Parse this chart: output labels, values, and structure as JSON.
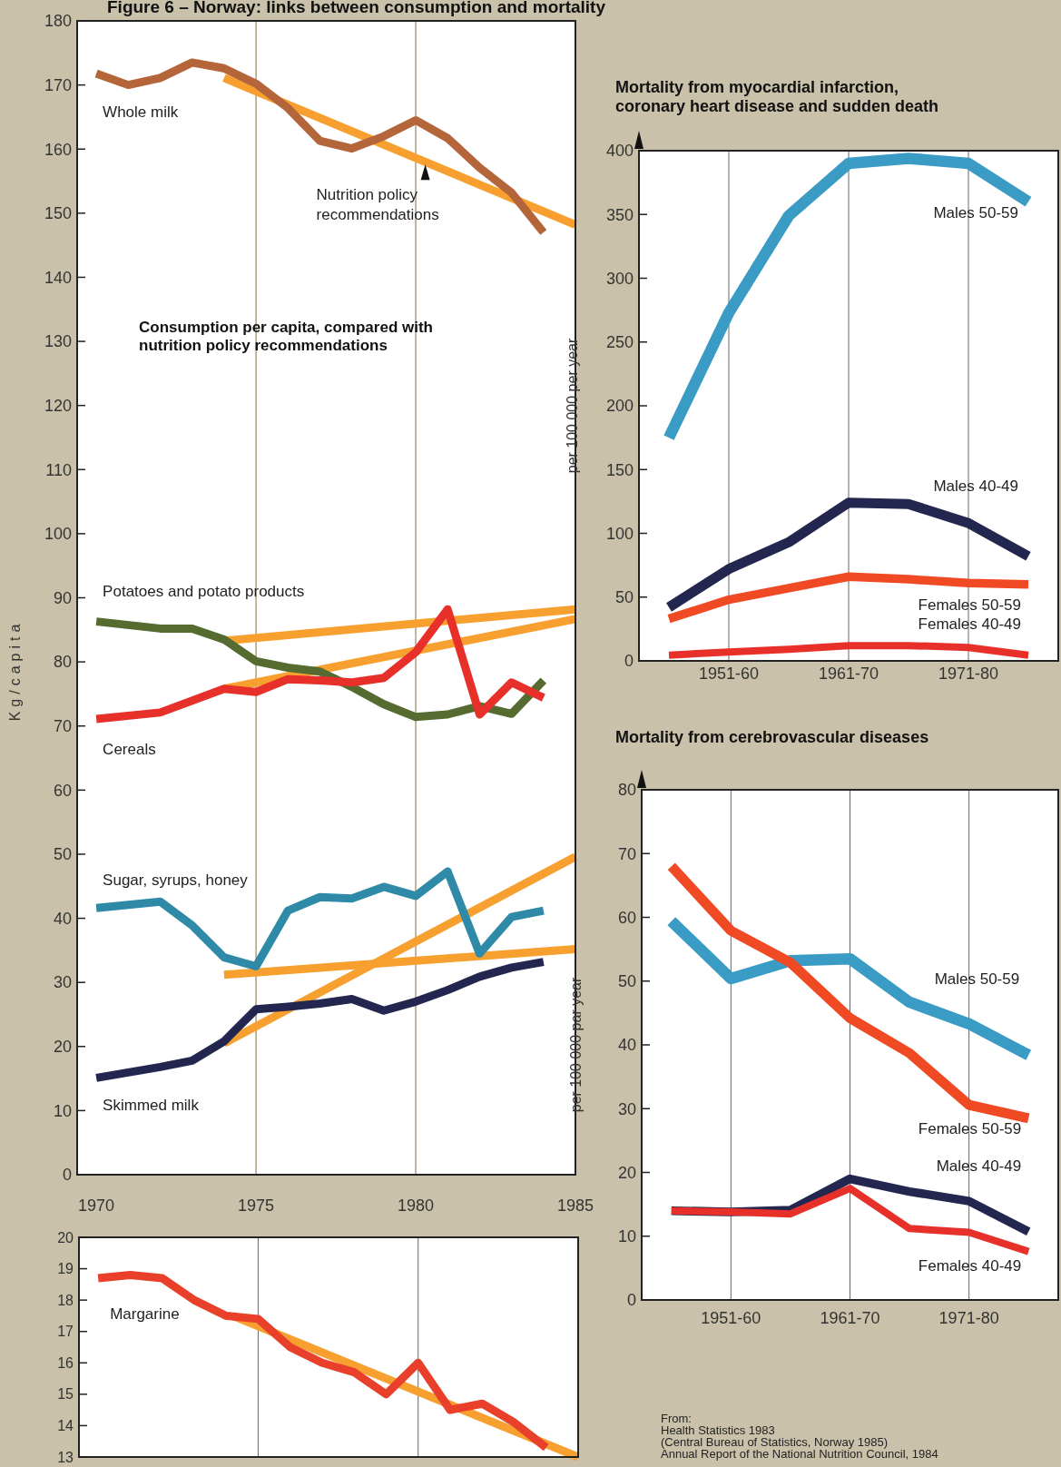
{
  "chart_data": [
    {
      "type": "line",
      "title": "Figure 6 – Norway: links between consumption and mortality",
      "ylabel": "Kg/capita",
      "xlim": [
        1969.4,
        1985
      ],
      "xticks": [
        1970,
        1975,
        1980,
        1985
      ],
      "ylim": [
        0,
        180
      ],
      "yticks": [
        0,
        10,
        20,
        30,
        40,
        50,
        60,
        70,
        80,
        90,
        100,
        110,
        120,
        130,
        140,
        150,
        160,
        170,
        180
      ],
      "ref_lines": [
        {
          "axis": "x",
          "value": 1975,
          "color": "#8a6a40"
        },
        {
          "axis": "x",
          "value": 1980,
          "color": "#8a6a40"
        }
      ],
      "annotations": [
        "Consumption per capita, compared with nutrition policy recommendations",
        {
          "text": "Nutrition policy recommendations",
          "x": 1980.3,
          "y": 158
        }
      ],
      "series": [
        {
          "color": "#f7a030",
          "x": [
            1974,
            1985
          ],
          "values": [
            171.1,
            148.2
          ]
        },
        {
          "color": "#f7a030",
          "x": [
            1974,
            1985
          ],
          "values": [
            83.3,
            88.2
          ]
        },
        {
          "color": "#f7a030",
          "x": [
            1974,
            1985
          ],
          "values": [
            75.8,
            86.7
          ]
        },
        {
          "color": "#f7a030",
          "x": [
            1974,
            1985
          ],
          "values": [
            31.2,
            35.2
          ]
        },
        {
          "color": "#f7a030",
          "x": [
            1974,
            1985
          ],
          "values": [
            20.5,
            49.6
          ]
        },
        {
          "name": "Whole milk",
          "color": "#b5653a",
          "x": [
            1970,
            1971,
            1972,
            1973,
            1974,
            1975,
            1976,
            1977,
            1978,
            1979,
            1980,
            1981,
            1982,
            1983,
            1984
          ],
          "values": [
            171.8,
            170,
            171.1,
            173.5,
            172.6,
            170.2,
            166.4,
            161.3,
            160.1,
            162,
            164.5,
            161.7,
            157.1,
            153.2,
            147
          ]
        },
        {
          "name": "Potatoes and potato products",
          "color": "#556b2f",
          "x": [
            1970,
            1972,
            1973,
            1974,
            1975,
            1976,
            1977,
            1978,
            1979,
            1980,
            1981,
            1982,
            1983,
            1984
          ],
          "values": [
            86.3,
            85.2,
            85.2,
            83.5,
            80.1,
            79.1,
            78.5,
            76.1,
            73.4,
            71.4,
            71.8,
            73.1,
            71.9,
            77.1
          ]
        },
        {
          "name": "Cereals",
          "color": "#e8302a",
          "x": [
            1970,
            1972,
            1974,
            1975,
            1976,
            1977,
            1978,
            1979,
            1980,
            1981,
            1982,
            1983,
            1984
          ],
          "values": [
            71.1,
            72.1,
            75.8,
            75.3,
            77.3,
            77.1,
            76.8,
            77.5,
            81.5,
            88.2,
            71.8,
            76.8,
            74.4
          ]
        },
        {
          "name": "Sugar, syrups, honey",
          "color": "#2f8aa8",
          "x": [
            1970,
            1972,
            1973,
            1974,
            1975,
            1976,
            1977,
            1978,
            1979,
            1980,
            1981,
            1982,
            1983,
            1984
          ],
          "values": [
            41.6,
            42.6,
            38.9,
            33.9,
            32.5,
            41.2,
            43.3,
            43.1,
            44.9,
            43.5,
            47.3,
            34.5,
            40.2,
            41.2
          ]
        },
        {
          "name": "Skimmed milk",
          "color": "#23264f",
          "x": [
            1970,
            1972,
            1973,
            1974,
            1975,
            1976,
            1977,
            1978,
            1979,
            1980,
            1981,
            1982,
            1983,
            1984
          ],
          "values": [
            15.1,
            16.8,
            17.8,
            20.8,
            25.8,
            26.2,
            26.7,
            27.4,
            25.6,
            27,
            28.8,
            30.9,
            32.3,
            33.2
          ]
        }
      ]
    },
    {
      "type": "line",
      "xlim": [
        1969.4,
        1985
      ],
      "xticks": [
        {
          "value": 1975,
          "label": null
        },
        {
          "value": 1980,
          "label": null
        }
      ],
      "ylim": [
        13,
        20
      ],
      "yticks": [
        13,
        14,
        15,
        16,
        17,
        18,
        19,
        20
      ],
      "tick_labels": "y",
      "grid": "x",
      "series": [
        {
          "color": "#f7a030",
          "x": [
            1974.2,
            1985
          ],
          "values": [
            17.5,
            13
          ]
        },
        {
          "name": "Margarine",
          "color": "#e8402a",
          "x": [
            1970,
            1971,
            1972,
            1973,
            1974,
            1975,
            1976,
            1977,
            1978,
            1979,
            1980,
            1981,
            1982,
            1983,
            1984
          ],
          "values": [
            18.7,
            18.8,
            18.7,
            18,
            17.5,
            17.4,
            16.5,
            16,
            15.7,
            15,
            16,
            14.5,
            14.7,
            14.1,
            13.3
          ]
        }
      ]
    },
    {
      "type": "line",
      "title": "Mortality from myocardial infarction, coronary heart disease and sudden death",
      "ylabel": "per 100 000  per year",
      "categories": [
        null,
        "1951-60",
        null,
        "1961-70",
        null,
        "1971-80",
        null
      ],
      "ylim": [
        0,
        400
      ],
      "yticks": [
        0,
        50,
        100,
        150,
        200,
        250,
        300,
        350,
        400
      ],
      "grid": "x",
      "series": [
        {
          "name": "Males 50-59",
          "color": "#3a9cc4",
          "values": [
            175,
            273,
            349,
            390,
            394,
            390,
            360
          ]
        },
        {
          "name": "Males 40-49",
          "color": "#23264f",
          "values": [
            42,
            72,
            93,
            124,
            123,
            108,
            82
          ]
        },
        {
          "name": "Females 50-59",
          "color": "#f04a25",
          "values": [
            33,
            48,
            57,
            66,
            64,
            61,
            60
          ]
        },
        {
          "name": "Females 40-49",
          "color": "#e8302a",
          "values": [
            4.5,
            7,
            9,
            12,
            12,
            10.5,
            4.5
          ]
        }
      ]
    },
    {
      "type": "line",
      "title": "Mortality from cerebrovascular diseases",
      "ylabel": "per 100 000 par year",
      "categories": [
        null,
        "1951-60",
        null,
        "1961-70",
        null,
        "1971-80",
        null
      ],
      "ylim": [
        0,
        80
      ],
      "yticks": [
        0,
        10,
        20,
        30,
        40,
        50,
        60,
        70,
        80
      ],
      "grid": "x",
      "annotations": [
        "From:\nHealth Statistics 1983\n(Central Bureau of Statistics, Norway 1985)\nAnnual Report of the National Nutrition Council, 1984"
      ],
      "series": [
        {
          "name": "Males 50-59",
          "color": "#3a9cc4",
          "values": [
            59.4,
            50.4,
            53.2,
            53.5,
            46.7,
            43.3,
            38.4
          ]
        },
        {
          "name": "Females 50-59",
          "color": "#f04a25",
          "values": [
            68,
            57.9,
            52.9,
            44.2,
            38.7,
            30.6,
            28.5
          ]
        },
        {
          "name": "Males 40-49",
          "color": "#23264f",
          "values": [
            14,
            13.8,
            14.1,
            19,
            17,
            15.5,
            10.7
          ]
        },
        {
          "name": "Females 40-49",
          "color": "#e8302a",
          "values": [
            14,
            13.8,
            13.5,
            17.5,
            11.2,
            10.6,
            7.6
          ]
        }
      ]
    }
  ]
}
